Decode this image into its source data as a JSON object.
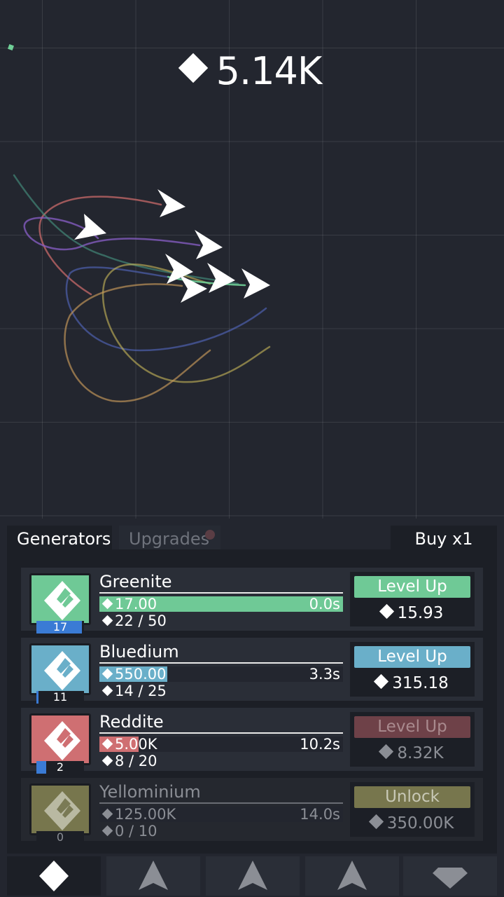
{
  "currency": {
    "amount": "5.14K",
    "icon": "diamond-icon"
  },
  "tabs": {
    "generators": "Generators",
    "upgrades": "Upgrades",
    "buy": "Buy x1"
  },
  "generators": [
    {
      "name": "Greenite",
      "level": "17",
      "level_progress": 0.95,
      "value": "17.00",
      "bar_progress": 1.0,
      "time": "0.0s",
      "owned": "22 / 50",
      "button": "Level Up",
      "cost": "15.93",
      "color": "#6fc996",
      "bar_color": "#6fc996",
      "locked": false,
      "affordable": true
    },
    {
      "name": "Bluedium",
      "level": "11",
      "level_progress": 0.05,
      "value": "550.00",
      "bar_progress": 0.28,
      "time": "3.3s",
      "owned": "14 / 25",
      "button": "Level Up",
      "cost": "315.18",
      "color": "#6aafc9",
      "bar_color": "#6aafc9",
      "locked": false,
      "affordable": true
    },
    {
      "name": "Reddite",
      "level": "2",
      "level_progress": 0.2,
      "value": "5.00K",
      "bar_progress": 0.16,
      "time": "10.2s",
      "owned": "8 / 20",
      "button": "Level Up",
      "cost": "8.32K",
      "color": "#cf6f72",
      "bar_color": "#cf6f72",
      "locked": false,
      "affordable": false
    },
    {
      "name": "Yellominium",
      "level": "0",
      "level_progress": 0,
      "value": "125.00K",
      "bar_progress": 0,
      "time": "14.0s",
      "owned": "0 / 10",
      "button": "Unlock",
      "cost": "350.00K",
      "color": "#7a7a55",
      "bar_color": "#7a7a55",
      "locked": true,
      "affordable": false
    }
  ],
  "nav": [
    {
      "icon": "diamond-icon",
      "active": true
    },
    {
      "icon": "arrow-ship-icon",
      "active": false
    },
    {
      "icon": "arrow-ship-icon",
      "active": false
    },
    {
      "icon": "arrow-ship-icon",
      "active": false
    },
    {
      "icon": "gem-icon",
      "active": false
    }
  ]
}
